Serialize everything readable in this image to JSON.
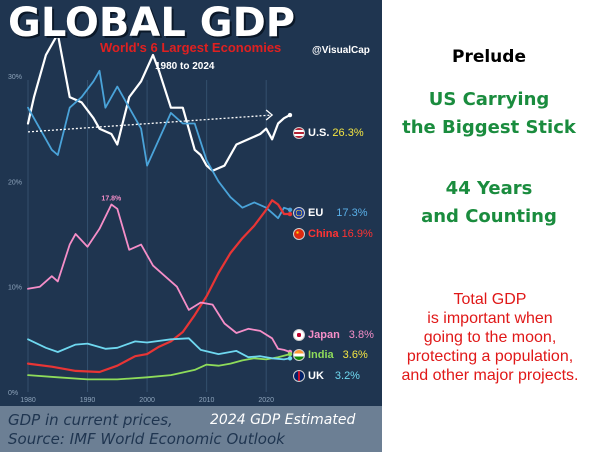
{
  "infographic": {
    "title": "GLOBAL GDP",
    "subtitle": "World's 6 Largest Economies",
    "date_range": "1980 to 2024",
    "credit": "@VisualCap",
    "source_line1": "GDP in current prices,",
    "estimated_label": "2024 GDP Estimated",
    "source_line2": "Source: IMF World Economic Outlook"
  },
  "legend": [
    {
      "name": "U.S.",
      "value": "26.3%",
      "flag": "us-flag-icon",
      "name_color": "#ffffff",
      "value_color": "#f5e642"
    },
    {
      "name": "EU",
      "value": "17.3%",
      "flag": "eu-flag-icon",
      "name_color": "#ffffff",
      "value_color": "#5ab0e8"
    },
    {
      "name": "China",
      "value": "16.9%",
      "flag": "china-flag-icon",
      "name_color": "#ff3333",
      "value_color": "#ff3333"
    },
    {
      "name": "Japan",
      "value": "3.8%",
      "flag": "japan-flag-icon",
      "name_color": "#f58ec8",
      "value_color": "#f58ec8"
    },
    {
      "name": "India",
      "value": "3.6%",
      "flag": "india-flag-icon",
      "name_color": "#8edc5a",
      "value_color": "#f5e642"
    },
    {
      "name": "UK",
      "value": "3.2%",
      "flag": "uk-flag-icon",
      "name_color": "#ffffff",
      "value_color": "#6fd8f0"
    }
  ],
  "sidebar": {
    "prelude": "Prelude",
    "heading1_line1": "US Carrying",
    "heading1_line2": "the Biggest Stick",
    "heading2_line1": "44 Years",
    "heading2_line2": "and Counting",
    "note_line1": "Total GDP",
    "note_line2": "is important when",
    "note_line3": "going to the moon,",
    "note_line4": "protecting a population,",
    "note_line5": "and other major projects."
  },
  "chart_data": {
    "type": "line",
    "title": "World's 6 Largest Economies",
    "ylim": [
      0,
      32
    ],
    "xlim": [
      1980,
      2024
    ],
    "y_ticks": [
      {
        "label": "30%",
        "value": 30
      },
      {
        "label": "20%",
        "value": 20
      },
      {
        "label": "10%",
        "value": 10
      },
      {
        "label": "0%",
        "value": 0
      }
    ],
    "x_ticks": [
      {
        "label": "1980",
        "value": 1980
      },
      {
        "label": "1990",
        "value": 1990
      },
      {
        "label": "2000",
        "value": 2000
      },
      {
        "label": "2010",
        "value": 2010
      },
      {
        "label": "2020",
        "value": 2020
      }
    ],
    "annotations": [
      {
        "text": "17.8%",
        "x": 1994,
        "y": 17.8,
        "color": "#f58ec8"
      }
    ],
    "trend_arrow": {
      "from": [
        1980,
        24.7
      ],
      "to": [
        2021,
        26.3
      ],
      "color": "#ffffff"
    },
    "series": [
      {
        "name": "U.S.",
        "color": "#ffffff",
        "points": [
          [
            1980,
            25.5
          ],
          [
            1981,
            28
          ],
          [
            1983,
            32
          ],
          [
            1985,
            34
          ],
          [
            1987,
            28
          ],
          [
            1989,
            27.5
          ],
          [
            1991,
            26
          ],
          [
            1992,
            25
          ],
          [
            1994,
            24.5
          ],
          [
            1995,
            23.5
          ],
          [
            1997,
            28
          ],
          [
            1999,
            29.5
          ],
          [
            2001,
            32
          ],
          [
            2002,
            30.5
          ],
          [
            2004,
            27
          ],
          [
            2006,
            27
          ],
          [
            2008,
            23
          ],
          [
            2009,
            22.5
          ],
          [
            2010,
            21.5
          ],
          [
            2011,
            21
          ],
          [
            2013,
            21.5
          ],
          [
            2015,
            23.5
          ],
          [
            2017,
            24
          ],
          [
            2019,
            24.5
          ],
          [
            2020,
            25
          ],
          [
            2021,
            24
          ],
          [
            2022,
            25.5
          ],
          [
            2023,
            26
          ],
          [
            2024,
            26.3
          ]
        ]
      },
      {
        "name": "EU",
        "color": "#4aa3d9",
        "points": [
          [
            1980,
            27
          ],
          [
            1982,
            25
          ],
          [
            1984,
            23
          ],
          [
            1985,
            22.5
          ],
          [
            1987,
            27
          ],
          [
            1989,
            28
          ],
          [
            1991,
            29.5
          ],
          [
            1992,
            30.5
          ],
          [
            1993,
            27
          ],
          [
            1995,
            29
          ],
          [
            1997,
            27
          ],
          [
            1999,
            25
          ],
          [
            2000,
            21.5
          ],
          [
            2002,
            24
          ],
          [
            2004,
            26.5
          ],
          [
            2006,
            25.5
          ],
          [
            2008,
            25.5
          ],
          [
            2010,
            22
          ],
          [
            2012,
            20
          ],
          [
            2014,
            18.5
          ],
          [
            2016,
            17.5
          ],
          [
            2018,
            18
          ],
          [
            2020,
            17.5
          ],
          [
            2022,
            16.5
          ],
          [
            2023,
            17.5
          ],
          [
            2024,
            17.3
          ]
        ]
      },
      {
        "name": "China",
        "color": "#e83535",
        "points": [
          [
            1980,
            2.7
          ],
          [
            1984,
            2.4
          ],
          [
            1988,
            2
          ],
          [
            1992,
            1.9
          ],
          [
            1995,
            2.5
          ],
          [
            1998,
            3.4
          ],
          [
            2000,
            3.6
          ],
          [
            2002,
            4.3
          ],
          [
            2004,
            4.8
          ],
          [
            2006,
            5.7
          ],
          [
            2008,
            7.3
          ],
          [
            2010,
            9.1
          ],
          [
            2012,
            11.3
          ],
          [
            2014,
            13.2
          ],
          [
            2016,
            14.6
          ],
          [
            2018,
            15.8
          ],
          [
            2020,
            17.3
          ],
          [
            2021,
            18.2
          ],
          [
            2022,
            17.8
          ],
          [
            2023,
            16.9
          ],
          [
            2024,
            16.9
          ]
        ]
      },
      {
        "name": "Japan",
        "color": "#f58ec8",
        "points": [
          [
            1980,
            9.8
          ],
          [
            1982,
            10
          ],
          [
            1984,
            11
          ],
          [
            1985,
            10.5
          ],
          [
            1987,
            14
          ],
          [
            1988,
            15
          ],
          [
            1990,
            13.8
          ],
          [
            1992,
            15.5
          ],
          [
            1994,
            17.8
          ],
          [
            1995,
            17.4
          ],
          [
            1997,
            13.5
          ],
          [
            1999,
            14
          ],
          [
            2001,
            12
          ],
          [
            2003,
            11
          ],
          [
            2005,
            10
          ],
          [
            2007,
            7.8
          ],
          [
            2009,
            8.5
          ],
          [
            2011,
            8.3
          ],
          [
            2013,
            6.5
          ],
          [
            2015,
            5.6
          ],
          [
            2017,
            6
          ],
          [
            2019,
            5.8
          ],
          [
            2021,
            5.1
          ],
          [
            2022,
            4.1
          ],
          [
            2023,
            4
          ],
          [
            2024,
            3.8
          ]
        ]
      },
      {
        "name": "India",
        "color": "#8edc5a",
        "points": [
          [
            1980,
            1.6
          ],
          [
            1985,
            1.4
          ],
          [
            1990,
            1.2
          ],
          [
            1995,
            1.2
          ],
          [
            2000,
            1.4
          ],
          [
            2004,
            1.6
          ],
          [
            2008,
            2.1
          ],
          [
            2010,
            2.6
          ],
          [
            2012,
            2.5
          ],
          [
            2014,
            2.7
          ],
          [
            2016,
            3
          ],
          [
            2018,
            3.2
          ],
          [
            2020,
            3.1
          ],
          [
            2022,
            3.3
          ],
          [
            2024,
            3.6
          ]
        ]
      },
      {
        "name": "UK",
        "color": "#6fd8f0",
        "points": [
          [
            1980,
            5
          ],
          [
            1983,
            4.2
          ],
          [
            1985,
            3.8
          ],
          [
            1988,
            4.5
          ],
          [
            1990,
            4.6
          ],
          [
            1993,
            4.1
          ],
          [
            1995,
            4.2
          ],
          [
            1998,
            4.8
          ],
          [
            2000,
            4.7
          ],
          [
            2004,
            5
          ],
          [
            2007,
            5.1
          ],
          [
            2009,
            4
          ],
          [
            2012,
            3.6
          ],
          [
            2015,
            3.9
          ],
          [
            2017,
            3.3
          ],
          [
            2019,
            3.4
          ],
          [
            2021,
            3.2
          ],
          [
            2023,
            3.1
          ],
          [
            2024,
            3.2
          ]
        ]
      }
    ]
  }
}
